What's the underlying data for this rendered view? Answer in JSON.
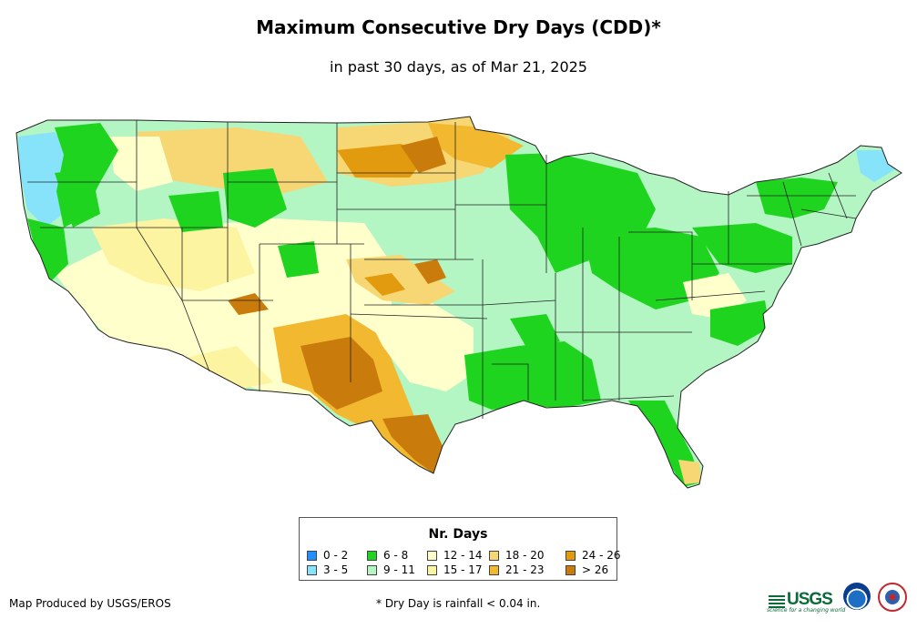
{
  "title": "Maximum Consecutive Dry Days (CDD)*",
  "subtitle": "in past 30 days, as of Mar 21, 2025",
  "legend": {
    "title": "Nr. Days",
    "items": [
      {
        "label": "0 - 2",
        "color": "#1e90ff"
      },
      {
        "label": "3 - 5",
        "color": "#87e3fa"
      },
      {
        "label": "6 - 8",
        "color": "#1fd41f"
      },
      {
        "label": "9 - 11",
        "color": "#b3f5c3"
      },
      {
        "label": "12 - 14",
        "color": "#ffffcc"
      },
      {
        "label": "15 - 17",
        "color": "#fdf4a2"
      },
      {
        "label": "18 - 20",
        "color": "#f7d774"
      },
      {
        "label": "21 - 23",
        "color": "#f2b830"
      },
      {
        "label": "24 - 26",
        "color": "#e29a0f"
      },
      {
        "label": "> 26",
        "color": "#c97c0c"
      }
    ]
  },
  "footer": {
    "left": "Map Produced by USGS/EROS",
    "note": "* Dry Day is rainfall < 0.04 in."
  },
  "logos": {
    "usgs": "USGS",
    "usgs_tagline": "science for a changing world"
  }
}
